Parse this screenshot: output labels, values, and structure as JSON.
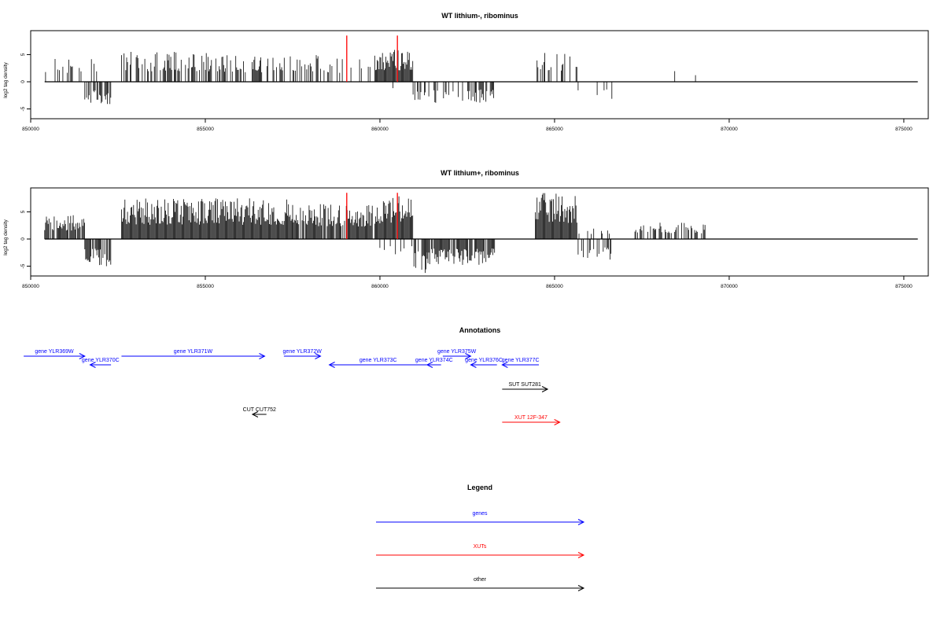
{
  "colors": {
    "gene": "#0000ff",
    "xut": "#ff0000",
    "other": "#000000",
    "highlight": "#ff0000",
    "axis": "#000000"
  },
  "chart_data": [
    {
      "type": "bar",
      "title": "WT lithium-, ribominus",
      "ylabel": "log2 tag density",
      "xlim": [
        850000,
        875700
      ],
      "ylim": [
        -6.8,
        9.4
      ],
      "x_ticks": [
        850000,
        855000,
        860000,
        865000,
        870000,
        875000
      ],
      "y_ticks": [
        -5,
        0,
        5
      ],
      "data_x_range": [
        850400,
        875400
      ],
      "segments": [
        {
          "from": 850400,
          "to": 851950,
          "sign": 1,
          "max": 4.5,
          "density": 0.25
        },
        {
          "from": 851550,
          "to": 852300,
          "sign": -1,
          "max": 4.4,
          "density": 0.5
        },
        {
          "from": 852600,
          "to": 855500,
          "sign": 1,
          "max": 5.5,
          "density": 0.55
        },
        {
          "from": 855500,
          "to": 858600,
          "sign": 1,
          "max": 5.0,
          "density": 0.35
        },
        {
          "from": 858600,
          "to": 859800,
          "sign": 1,
          "max": 4.5,
          "density": 0.2
        },
        {
          "from": 859850,
          "to": 860950,
          "sign": 1,
          "max": 6.0,
          "density": 1.0
        },
        {
          "from": 860250,
          "to": 860450,
          "sign": -1,
          "max": 2.0,
          "density": 0.1
        },
        {
          "from": 860950,
          "to": 861350,
          "sign": -1,
          "max": 3.6,
          "density": 0.45
        },
        {
          "from": 861350,
          "to": 863300,
          "sign": -1,
          "max": 4.0,
          "density": 0.5
        },
        {
          "from": 864450,
          "to": 865650,
          "sign": 1,
          "max": 5.8,
          "density": 0.4
        },
        {
          "from": 865650,
          "to": 866650,
          "sign": -1,
          "max": 3.5,
          "density": 0.15
        },
        {
          "from": 867300,
          "to": 869150,
          "sign": 1,
          "max": 3.2,
          "density": 0.06
        }
      ],
      "spikes": [
        {
          "x": 859050,
          "y": 8.5,
          "color": "red"
        },
        {
          "x": 860500,
          "y": 8.5,
          "color": "red"
        }
      ]
    },
    {
      "type": "bar",
      "title": "WT lithium+, ribominus",
      "ylabel": "log2 tag density",
      "xlim": [
        850000,
        875700
      ],
      "ylim": [
        -6.8,
        9.4
      ],
      "x_ticks": [
        850000,
        855000,
        860000,
        865000,
        870000,
        875000
      ],
      "y_ticks": [
        -5,
        0,
        5
      ],
      "data_x_range": [
        850400,
        875400
      ],
      "segments": [
        {
          "from": 850400,
          "to": 851550,
          "sign": 1,
          "max": 4.5,
          "density": 0.8
        },
        {
          "from": 851550,
          "to": 852300,
          "sign": -1,
          "max": 5.0,
          "density": 0.9
        },
        {
          "from": 852600,
          "to": 857500,
          "sign": 1,
          "max": 7.5,
          "density": 1.0
        },
        {
          "from": 857500,
          "to": 859800,
          "sign": 1,
          "max": 6.5,
          "density": 0.9
        },
        {
          "from": 859850,
          "to": 860950,
          "sign": 1,
          "max": 8.0,
          "density": 1.0
        },
        {
          "from": 859850,
          "to": 860950,
          "sign": -1,
          "max": 3.0,
          "density": 0.2
        },
        {
          "from": 860950,
          "to": 861350,
          "sign": -1,
          "max": 6.5,
          "density": 0.8
        },
        {
          "from": 861350,
          "to": 863300,
          "sign": -1,
          "max": 5.0,
          "density": 0.9
        },
        {
          "from": 864450,
          "to": 865650,
          "sign": 1,
          "max": 8.5,
          "density": 1.0
        },
        {
          "from": 865650,
          "to": 866650,
          "sign": -1,
          "max": 4.0,
          "density": 0.4
        },
        {
          "from": 865650,
          "to": 866650,
          "sign": 1,
          "max": 2.0,
          "density": 0.2
        },
        {
          "from": 867300,
          "to": 869350,
          "sign": 1,
          "max": 3.0,
          "density": 0.5
        }
      ],
      "spikes": [
        {
          "x": 859050,
          "y": 8.5,
          "color": "red"
        },
        {
          "x": 860500,
          "y": 8.5,
          "color": "red"
        }
      ]
    }
  ],
  "annotations": {
    "title": "Annotations",
    "features": [
      {
        "label": "gene YLR369W",
        "type": "gene",
        "start": 849800,
        "end": 851550,
        "strand": "+",
        "row": 0
      },
      {
        "label": "gene YLR370C",
        "type": "gene",
        "start": 851700,
        "end": 852300,
        "strand": "-",
        "row": 1
      },
      {
        "label": "gene YLR371W",
        "type": "gene",
        "start": 852600,
        "end": 856700,
        "strand": "+",
        "row": 0
      },
      {
        "label": "gene YLR372W",
        "type": "gene",
        "start": 857250,
        "end": 858300,
        "strand": "+",
        "row": 0
      },
      {
        "label": "gene YLR373C",
        "type": "gene",
        "start": 858550,
        "end": 861350,
        "strand": "-",
        "row": 1
      },
      {
        "label": "gene YLR374C",
        "type": "gene",
        "start": 861350,
        "end": 861750,
        "strand": "-",
        "row": 1
      },
      {
        "label": "gene YLR375W",
        "type": "gene",
        "start": 861800,
        "end": 862600,
        "strand": "+",
        "row": 0
      },
      {
        "label": "gene YLR376C",
        "type": "gene",
        "start": 862600,
        "end": 863350,
        "strand": "-",
        "row": 1
      },
      {
        "label": "gene YLR377C",
        "type": "gene",
        "start": 863500,
        "end": 864550,
        "strand": "-",
        "row": 1
      },
      {
        "label": "SUT SUT281",
        "type": "other",
        "start": 863500,
        "end": 864800,
        "strand": "+",
        "row": 2
      },
      {
        "label": "CUT CUT752",
        "type": "other",
        "start": 856350,
        "end": 856750,
        "strand": "-",
        "row": 3
      },
      {
        "label": "XUT 12F-347",
        "type": "xut",
        "start": 863500,
        "end": 865150,
        "strand": "+",
        "row": 4
      }
    ]
  },
  "legend": {
    "title": "Legend",
    "items": [
      {
        "label": "genes",
        "type": "gene"
      },
      {
        "label": "XUTs",
        "type": "xut"
      },
      {
        "label": "other",
        "type": "other"
      }
    ]
  }
}
